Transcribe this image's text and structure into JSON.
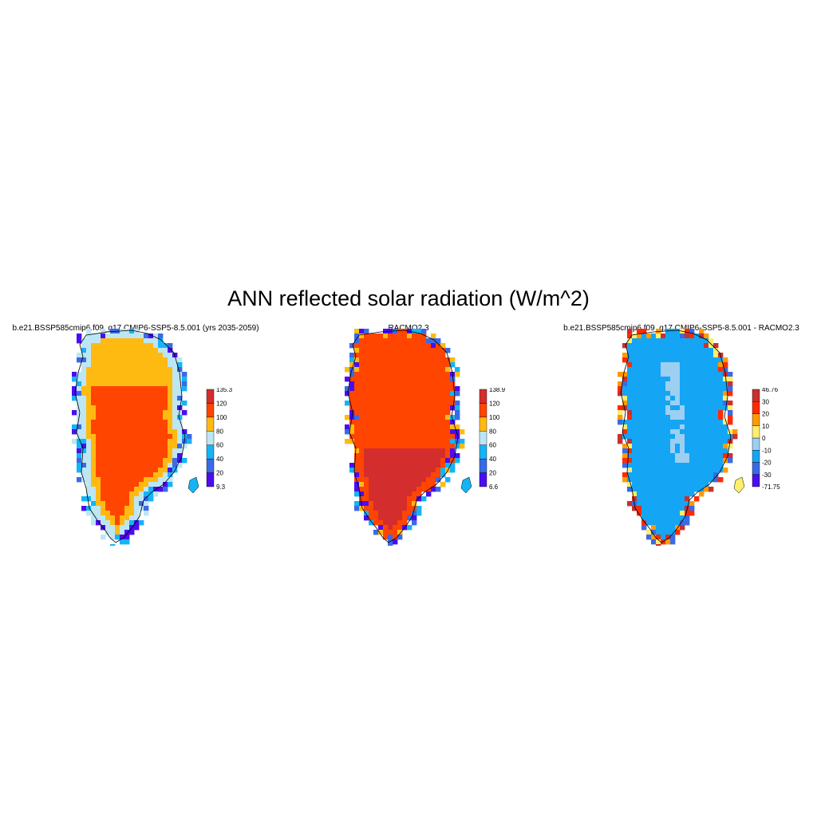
{
  "figure": {
    "title": "ANN reflected solar radiation (W/m^2)"
  },
  "panels": [
    {
      "title": "b.e21.BSSP585cmip6.f09_g17.CMIP6-SSP5-8.5.001 (yrs 2035-2059)",
      "colorbar": {
        "colors": [
          "#4b0df0",
          "#3a6ae6",
          "#14b4f5",
          "#bde6f5",
          "#ffba12",
          "#ff4500",
          "#d42d2d"
        ],
        "labels": [
          "9.3",
          "20",
          "40",
          "60",
          "80",
          "100",
          "120",
          "135.3"
        ]
      },
      "fields": {
        "interior": "#ff4500",
        "middle": "#ffba12",
        "edge": "#bde6f5",
        "fringe": [
          "#14b4f5",
          "#3a6ae6",
          "#4b0df0",
          "#bde6f5"
        ]
      }
    },
    {
      "title": "RACMO2.3",
      "colorbar": {
        "colors": [
          "#4b0df0",
          "#3a6ae6",
          "#14b4f5",
          "#bde6f5",
          "#ffba12",
          "#ff4500",
          "#d42d2d"
        ],
        "labels": [
          "6.6",
          "20",
          "40",
          "60",
          "80",
          "100",
          "120",
          "138.9"
        ]
      },
      "fields": {
        "interior": "#ff4500",
        "south": "#d42d2d",
        "edge": "#ff4500",
        "fringe": [
          "#14b4f5",
          "#3a6ae6",
          "#4b0df0",
          "#ffba12"
        ]
      }
    },
    {
      "title": "b.e21.BSSP585cmip6.f09_g17.CMIP6-SSP5-8.5.001 - RACMO2.3",
      "colorbar": {
        "colors": [
          "#4b0df0",
          "#3a6ae6",
          "#14a5f5",
          "#9ccff2",
          "#ffee6b",
          "#ff9a00",
          "#ff2a00",
          "#c8312e"
        ],
        "labels": [
          "-71.75",
          "-30",
          "-20",
          "-10",
          "0",
          "10",
          "20",
          "30",
          "46.76"
        ]
      },
      "fields": {
        "interior": "#14a5f5",
        "patch": "#9ccff2",
        "edge": "#14a5f5",
        "fringe": [
          "#ffee6b",
          "#ff2a00",
          "#ff9a00",
          "#3a6ae6",
          "#c8312e"
        ]
      }
    }
  ]
}
